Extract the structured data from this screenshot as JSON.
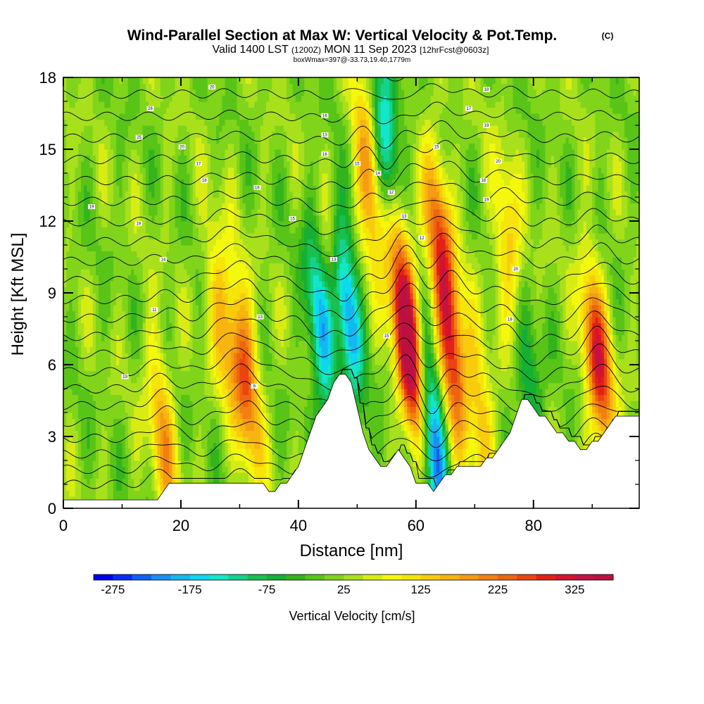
{
  "chart_data": {
    "type": "heatmap",
    "title": "Wind-Parallel Section at Max W: Vertical Velocity & Pot.Temp.",
    "title_mark": "(C)",
    "subtitle_main": "Valid 1400 LST",
    "subtitle_z": "(1200Z)",
    "subtitle_date": "MON 11 Sep 2023",
    "subtitle_fcst": "[12hrFcst@0603z]",
    "box_line": "boxWmax=397@-33.73,19.40,1779m",
    "xlabel": "Distance [nm]",
    "ylabel": "Height [Kft MSL]",
    "xlim": [
      0,
      98
    ],
    "ylim": [
      0,
      18
    ],
    "x_ticks": [
      "0",
      "20",
      "40",
      "60",
      "80"
    ],
    "y_ticks": [
      "0",
      "3",
      "6",
      "9",
      "12",
      "15",
      "18"
    ],
    "colorbar": {
      "label": "Vertical Velocity [cm/s]",
      "tick_labels": [
        "-275",
        "-175",
        "-75",
        "25",
        "125",
        "225",
        "325"
      ],
      "tick_values": [
        -275,
        -175,
        -75,
        25,
        125,
        225,
        325
      ],
      "range": [
        -300,
        375
      ],
      "step": 25,
      "colors": [
        "#0000ee",
        "#0a2cf5",
        "#1160f5",
        "#1890f5",
        "#14b8f0",
        "#0cd8f0",
        "#14e6c8",
        "#14d28c",
        "#18c050",
        "#14b034",
        "#34b41c",
        "#58c418",
        "#80d41a",
        "#a8e01c",
        "#d8ec14",
        "#f4f80c",
        "#f6e40a",
        "#f8cc0c",
        "#f8b410",
        "#f59c12",
        "#f28010",
        "#ee6410",
        "#ea4410",
        "#e42018",
        "#d4142e",
        "#c41244",
        "#bc1040"
      ]
    },
    "updrafts": [
      {
        "x": 17,
        "z": 3.0,
        "w": 160
      },
      {
        "x": 27,
        "z": 8.0,
        "w": 130
      },
      {
        "x": 31,
        "z": 5.5,
        "w": 230
      },
      {
        "x": 46,
        "z": 9.0,
        "w": 140
      },
      {
        "x": 52,
        "z": 14.0,
        "w": 200
      },
      {
        "x": 57,
        "z": 10.5,
        "w": 190
      },
      {
        "x": 59,
        "z": 6.3,
        "w": 345
      },
      {
        "x": 64,
        "z": 11.5,
        "w": 200
      },
      {
        "x": 66,
        "z": 6.5,
        "w": 260
      },
      {
        "x": 71,
        "z": 4.0,
        "w": 130
      },
      {
        "x": 76,
        "z": 10.5,
        "w": 150
      },
      {
        "x": 91,
        "z": 6.0,
        "w": 290
      }
    ],
    "downdrafts": [
      {
        "x": 44,
        "z": 7.5,
        "w": -230
      },
      {
        "x": 48,
        "z": 8.5,
        "w": -275
      },
      {
        "x": 55,
        "z": 15.0,
        "w": -240
      },
      {
        "x": 63,
        "z": 3.0,
        "w": -260
      },
      {
        "x": 79,
        "z": 5.5,
        "w": -120
      }
    ],
    "theta_labels": [
      {
        "x": 4.8,
        "z": 12.6,
        "text": "19"
      },
      {
        "x": 12.8,
        "z": 11.9,
        "text": "19"
      },
      {
        "x": 17.0,
        "z": 10.4,
        "text": "14"
      },
      {
        "x": 15.5,
        "z": 8.3,
        "text": "11"
      },
      {
        "x": 10.5,
        "z": 5.5,
        "text": "19"
      },
      {
        "x": 14.8,
        "z": 16.7,
        "text": "26"
      },
      {
        "x": 12.9,
        "z": 15.5,
        "text": "25"
      },
      {
        "x": 20.2,
        "z": 15.1,
        "text": "20"
      },
      {
        "x": 23.0,
        "z": 14.4,
        "text": "17"
      },
      {
        "x": 24.0,
        "z": 13.7,
        "text": "18"
      },
      {
        "x": 25.3,
        "z": 17.6,
        "text": "20"
      },
      {
        "x": 33.0,
        "z": 13.4,
        "text": "16"
      },
      {
        "x": 39.0,
        "z": 12.1,
        "text": "15"
      },
      {
        "x": 33.5,
        "z": 8.0,
        "text": "13"
      },
      {
        "x": 32.5,
        "z": 5.1,
        "text": "9"
      },
      {
        "x": 44.5,
        "z": 16.4,
        "text": "16"
      },
      {
        "x": 44.5,
        "z": 15.6,
        "text": "13"
      },
      {
        "x": 44.5,
        "z": 14.8,
        "text": "16"
      },
      {
        "x": 50.0,
        "z": 14.4,
        "text": "15"
      },
      {
        "x": 53.5,
        "z": 14.0,
        "text": "14"
      },
      {
        "x": 55.8,
        "z": 13.2,
        "text": "12"
      },
      {
        "x": 58.0,
        "z": 12.2,
        "text": "13"
      },
      {
        "x": 61.0,
        "z": 11.3,
        "text": "12"
      },
      {
        "x": 46.0,
        "z": 10.4,
        "text": "13"
      },
      {
        "x": 55.0,
        "z": 7.2,
        "text": "15"
      },
      {
        "x": 63.5,
        "z": 15.1,
        "text": "15"
      },
      {
        "x": 69.0,
        "z": 16.7,
        "text": "17"
      },
      {
        "x": 72.0,
        "z": 17.5,
        "text": "18"
      },
      {
        "x": 72.0,
        "z": 16.0,
        "text": "19"
      },
      {
        "x": 74.0,
        "z": 14.5,
        "text": "20"
      },
      {
        "x": 71.5,
        "z": 13.7,
        "text": "18"
      },
      {
        "x": 72.0,
        "z": 12.9,
        "text": "19"
      },
      {
        "x": 77.0,
        "z": 10.0,
        "text": "20"
      },
      {
        "x": 76.0,
        "z": 7.9,
        "text": "18"
      }
    ],
    "terrain": [
      [
        0,
        0.35
      ],
      [
        16,
        0.35
      ],
      [
        17,
        0.7
      ],
      [
        18,
        1.05
      ],
      [
        34,
        1.05
      ],
      [
        35,
        0.7
      ],
      [
        36,
        0.7
      ],
      [
        37,
        1.05
      ],
      [
        38,
        1.05
      ],
      [
        39,
        1.4
      ],
      [
        40,
        1.75
      ],
      [
        41,
        2.45
      ],
      [
        42,
        3.15
      ],
      [
        43,
        3.85
      ],
      [
        44,
        4.2
      ],
      [
        45,
        4.55
      ],
      [
        46,
        5.25
      ],
      [
        47,
        5.6
      ],
      [
        48,
        5.6
      ],
      [
        49,
        5.25
      ],
      [
        50,
        4.2
      ],
      [
        51,
        3.15
      ],
      [
        52,
        2.45
      ],
      [
        53,
        2.1
      ],
      [
        54,
        1.75
      ],
      [
        55,
        1.75
      ],
      [
        56,
        2.1
      ],
      [
        57,
        2.45
      ],
      [
        58,
        2.1
      ],
      [
        59,
        1.75
      ],
      [
        60,
        1.05
      ],
      [
        62,
        1.05
      ],
      [
        63,
        0.7
      ],
      [
        64,
        1.05
      ],
      [
        65,
        1.4
      ],
      [
        66,
        1.4
      ],
      [
        67,
        1.75
      ],
      [
        68,
        1.75
      ],
      [
        69,
        1.75
      ],
      [
        70,
        1.75
      ],
      [
        71,
        1.75
      ],
      [
        72,
        2.1
      ],
      [
        73,
        2.1
      ],
      [
        74,
        2.45
      ],
      [
        75,
        2.8
      ],
      [
        76,
        3.15
      ],
      [
        77,
        3.85
      ],
      [
        78,
        4.55
      ],
      [
        79,
        4.55
      ],
      [
        80,
        4.2
      ],
      [
        81,
        3.85
      ],
      [
        82,
        3.85
      ],
      [
        83,
        3.5
      ],
      [
        84,
        3.15
      ],
      [
        85,
        3.15
      ],
      [
        86,
        2.8
      ],
      [
        87,
        2.8
      ],
      [
        88,
        2.45
      ],
      [
        89,
        2.45
      ],
      [
        90,
        2.8
      ],
      [
        91,
        2.8
      ],
      [
        92,
        3.15
      ],
      [
        93,
        3.5
      ],
      [
        94,
        3.85
      ],
      [
        98,
        3.85
      ]
    ]
  }
}
